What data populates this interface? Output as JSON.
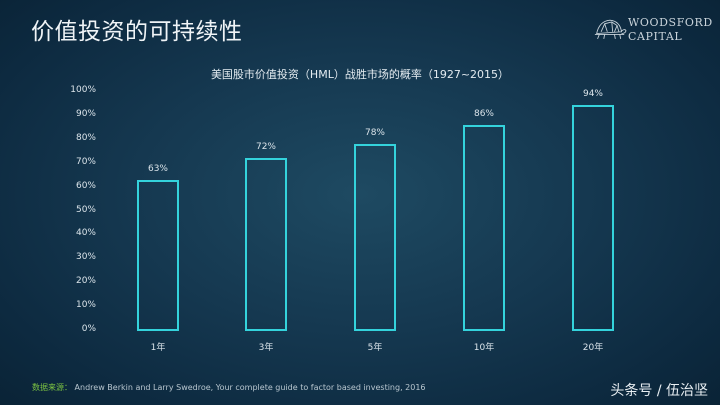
{
  "header": {
    "title": "价值投资的可持续性",
    "logo": {
      "line1": "WOODSFORD",
      "line2": "CAPITAL",
      "icon": "tortoise-icon"
    }
  },
  "chart_data": {
    "type": "bar",
    "title": "美国股市价值投资（HML）战胜市场的概率（1927~2015）",
    "categories": [
      "1年",
      "3年",
      "5年",
      "10年",
      "20年"
    ],
    "values": [
      63,
      72,
      78,
      86,
      94
    ],
    "value_labels": [
      "63%",
      "72%",
      "78%",
      "86%",
      "94%"
    ],
    "xlabel": "",
    "ylabel": "",
    "ylim": [
      0,
      100
    ],
    "yticks": [
      "0%",
      "10%",
      "20%",
      "30%",
      "40%",
      "50%",
      "60%",
      "70%",
      "80%",
      "90%",
      "100%"
    ],
    "grid": false,
    "legend": null,
    "bar_style": "outline",
    "colors": {
      "bar_outline": "#34d3dc"
    }
  },
  "footer": {
    "source_label": "数据来源：",
    "source_text": "Andrew Berkin and Larry Swedroe, Your complete guide to factor based investing, 2016",
    "watermark": "头条号 / 伍治坚"
  }
}
